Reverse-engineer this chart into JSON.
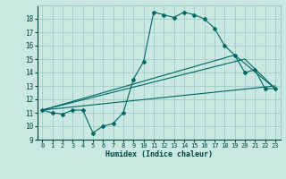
{
  "xlabel": "Humidex (Indice chaleur)",
  "ylabel": "",
  "background_color": "#c8e8e0",
  "grid_color": "#a0ccc8",
  "line_color": "#006666",
  "xlim": [
    -0.5,
    23.5
  ],
  "ylim": [
    9,
    19
  ],
  "xticks": [
    0,
    1,
    2,
    3,
    4,
    5,
    6,
    7,
    8,
    9,
    10,
    11,
    12,
    13,
    14,
    15,
    16,
    17,
    18,
    19,
    20,
    21,
    22,
    23
  ],
  "yticks": [
    9,
    10,
    11,
    12,
    13,
    14,
    15,
    16,
    17,
    18
  ],
  "line1_x": [
    0,
    1,
    2,
    3,
    4,
    5,
    6,
    7,
    8,
    9,
    10,
    11,
    12,
    13,
    14,
    15,
    16,
    17,
    18,
    19,
    20,
    21,
    22,
    23
  ],
  "line1_y": [
    11.2,
    11.0,
    10.9,
    11.2,
    11.2,
    9.5,
    10.0,
    10.2,
    11.0,
    13.5,
    14.8,
    18.5,
    18.3,
    18.1,
    18.5,
    18.3,
    18.0,
    17.3,
    16.0,
    15.3,
    14.0,
    14.2,
    12.8,
    12.8
  ],
  "line2_x": [
    0,
    23
  ],
  "line2_y": [
    11.2,
    13.0
  ],
  "line3_x": [
    0,
    19,
    23
  ],
  "line3_y": [
    11.2,
    15.3,
    12.8
  ],
  "line4_x": [
    0,
    20,
    23
  ],
  "line4_y": [
    11.2,
    15.0,
    12.8
  ]
}
